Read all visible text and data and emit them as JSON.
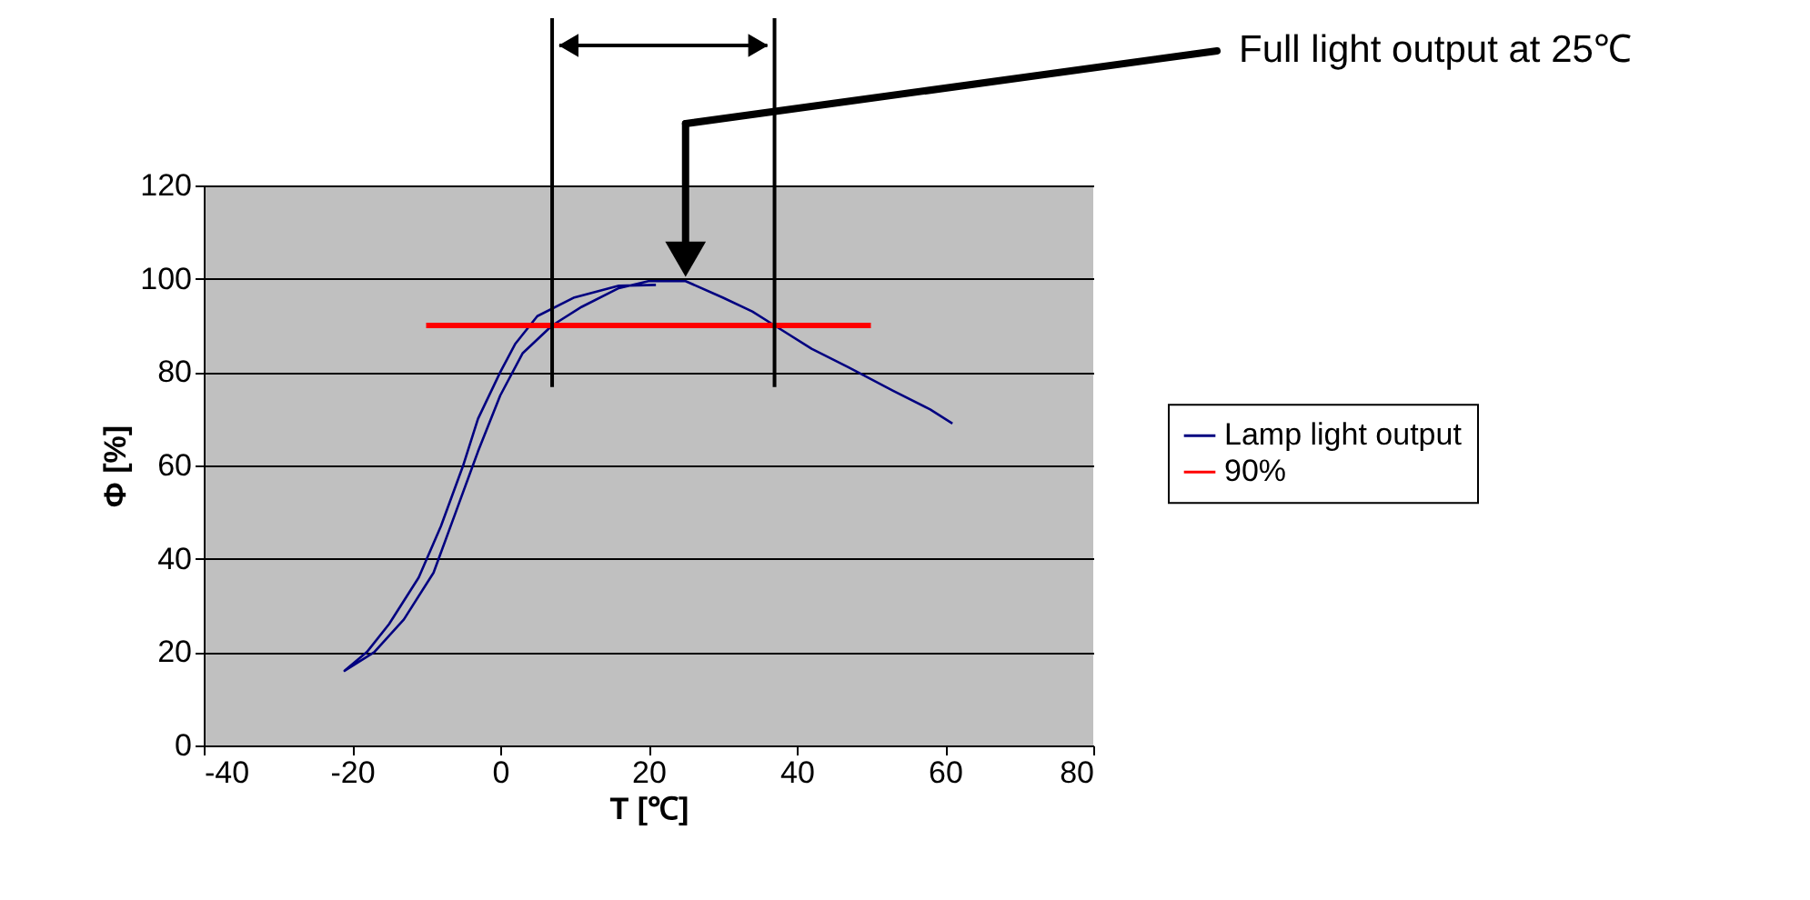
{
  "chart_data": {
    "type": "line",
    "xlabel": "T [℃]",
    "ylabel": "Φ [%]",
    "xlim": [
      -40,
      80
    ],
    "xticks": [
      -40,
      -20,
      0,
      20,
      40,
      60,
      80
    ],
    "ylim": [
      0,
      120
    ],
    "yticks": [
      0,
      20,
      40,
      60,
      80,
      100,
      120
    ],
    "grid": "y",
    "legend": "right",
    "series": [
      {
        "name": "Lamp light output",
        "color": "#000080",
        "x": [
          21,
          16,
          10,
          5,
          2,
          0,
          -3,
          -5,
          -8,
          -11,
          -15,
          -18,
          -21,
          -17,
          -13,
          -9,
          -6,
          -3,
          0,
          3,
          7,
          11,
          16,
          20,
          25,
          30,
          34,
          37,
          42,
          47,
          53,
          58,
          61
        ],
        "values": [
          98.7,
          98.5,
          96,
          92,
          86,
          80,
          70,
          60,
          47,
          36,
          26,
          20,
          16,
          20,
          27,
          37,
          50,
          63,
          75,
          84,
          90,
          94,
          98,
          99.5,
          99.5,
          96,
          93,
          90,
          85,
          81,
          76,
          72,
          69
        ]
      },
      {
        "name": "90%",
        "color": "#ff0000",
        "x": [
          -10,
          50
        ],
        "values": [
          90,
          90
        ]
      }
    ],
    "ref_lines": [
      {
        "axis": "x",
        "value": 7
      },
      {
        "axis": "x",
        "value": 37
      }
    ],
    "annotations": [
      "Full light output at 25℃"
    ]
  }
}
